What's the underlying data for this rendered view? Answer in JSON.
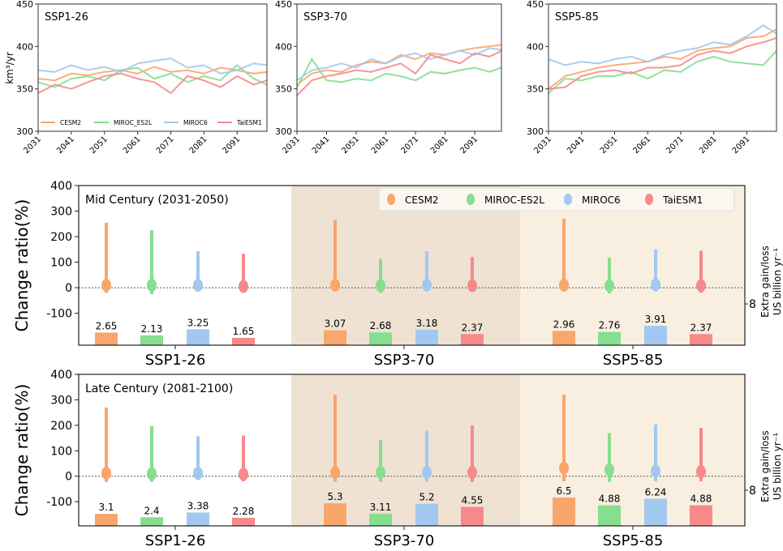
{
  "colors": {
    "CESM2": "#f9a66c",
    "MIROC_ES2L": "#86de8f",
    "MIROC6": "#a3c8ef",
    "TaiESM1": "#f7898b",
    "shade_ssp3": "#efe2d3",
    "shade_ssp5": "#f8efe1"
  },
  "chart_data": [
    {
      "type": "line",
      "ylabel": "km³/yr",
      "ylim": [
        300,
        450
      ],
      "yticks": [
        300,
        350,
        400,
        450
      ],
      "xlim": [
        2031,
        2100
      ],
      "xticks": [
        2031,
        2041,
        2051,
        2061,
        2071,
        2081,
        2091
      ],
      "x": [
        2031,
        2036,
        2041,
        2046,
        2051,
        2056,
        2061,
        2066,
        2071,
        2076,
        2081,
        2086,
        2091,
        2096,
        2100
      ],
      "legend": [
        "CESM2",
        "MIROC_ES2L",
        "MIROC6",
        "TaiESM1"
      ],
      "panels": [
        {
          "title": "SSP1-26",
          "series": [
            {
              "name": "CESM2",
              "values": [
                362,
                360,
                368,
                366,
                370,
                372,
                368,
                376,
                370,
                372,
                368,
                375,
                372,
                368,
                370
              ]
            },
            {
              "name": "MIROC_ES2L",
              "values": [
                358,
                352,
                362,
                365,
                360,
                372,
                375,
                362,
                368,
                358,
                365,
                360,
                378,
                362,
                355
              ]
            },
            {
              "name": "MIROC6",
              "values": [
                372,
                370,
                378,
                372,
                376,
                370,
                380,
                383,
                386,
                375,
                378,
                368,
                372,
                380,
                378
              ]
            },
            {
              "name": "TaiESM1",
              "values": [
                345,
                355,
                350,
                358,
                365,
                368,
                362,
                358,
                345,
                365,
                360,
                352,
                365,
                355,
                360
              ]
            }
          ]
        },
        {
          "title": "SSP3-70",
          "series": [
            {
              "name": "CESM2",
              "values": [
                355,
                368,
                372,
                370,
                378,
                382,
                380,
                390,
                385,
                392,
                390,
                395,
                398,
                400,
                402
              ]
            },
            {
              "name": "MIROC_ES2L",
              "values": [
                352,
                385,
                360,
                358,
                362,
                360,
                368,
                365,
                360,
                370,
                368,
                372,
                375,
                370,
                375
              ]
            },
            {
              "name": "MIROC6",
              "values": [
                360,
                372,
                375,
                380,
                375,
                385,
                380,
                388,
                392,
                385,
                390,
                395,
                390,
                398,
                396
              ]
            },
            {
              "name": "TaiESM1",
              "values": [
                342,
                360,
                365,
                368,
                372,
                370,
                375,
                380,
                368,
                390,
                385,
                380,
                392,
                388,
                395
              ]
            }
          ]
        },
        {
          "title": "SSP5-85",
          "series": [
            {
              "name": "CESM2",
              "values": [
                350,
                365,
                370,
                375,
                378,
                380,
                382,
                388,
                385,
                395,
                398,
                400,
                410,
                412,
                420
              ]
            },
            {
              "name": "MIROC_ES2L",
              "values": [
                345,
                362,
                360,
                365,
                365,
                370,
                362,
                372,
                370,
                382,
                388,
                382,
                380,
                378,
                395
              ]
            },
            {
              "name": "MIROC6",
              "values": [
                385,
                378,
                382,
                380,
                385,
                388,
                382,
                390,
                395,
                398,
                405,
                402,
                412,
                425,
                415
              ]
            },
            {
              "name": "TaiESM1",
              "values": [
                350,
                352,
                365,
                370,
                372,
                368,
                375,
                375,
                378,
                390,
                395,
                392,
                400,
                405,
                410
              ]
            }
          ]
        }
      ]
    },
    {
      "type": "bar",
      "title": "Mid Century (2031-2050)",
      "ylabel": "Change ratio(%)",
      "ylabel_right": [
        "Extra gain/loss",
        "US billion yr⁻¹"
      ],
      "ylim": [
        -225,
        400
      ],
      "yticks": [
        -100,
        0,
        100,
        200,
        300,
        400
      ],
      "bar_ylim": [
        0.29,
        30.1
      ],
      "right_ticks": [
        8
      ],
      "categories": [
        "SSP1-26",
        "SSP3-70",
        "SSP5-85"
      ],
      "legend": [
        "CESM2",
        "MIROC-ES2L",
        "MIROC6",
        "TaiESM1"
      ],
      "series": [
        {
          "name": "CESM2",
          "ranges": [
            [
              -20,
              255
            ],
            [
              -15,
              265
            ],
            [
              -15,
              270
            ]
          ],
          "medians": [
            10,
            10,
            10
          ],
          "bars": [
            2.65,
            3.07,
            2.96
          ]
        },
        {
          "name": "MIROC-ES2L",
          "ranges": [
            [
              -25,
              225
            ],
            [
              -20,
              113
            ],
            [
              -22,
              118
            ]
          ],
          "medians": [
            10,
            8,
            8
          ],
          "bars": [
            2.13,
            2.68,
            2.76
          ]
        },
        {
          "name": "MIROC6",
          "ranges": [
            [
              -15,
              143
            ],
            [
              -15,
              143
            ],
            [
              -15,
              150
            ]
          ],
          "medians": [
            10,
            10,
            12
          ],
          "bars": [
            3.25,
            3.18,
            3.91
          ]
        },
        {
          "name": "TaiESM1",
          "ranges": [
            [
              -20,
              133
            ],
            [
              -15,
              120
            ],
            [
              -20,
              145
            ]
          ],
          "medians": [
            5,
            8,
            8
          ],
          "bars": [
            1.65,
            2.37,
            2.37
          ]
        }
      ]
    },
    {
      "type": "bar",
      "title": "Late Century (2081-2100)",
      "ylabel": "Change ratio(%)",
      "ylabel_right": [
        "Extra gain/loss",
        "US billion yr⁻¹"
      ],
      "ylim": [
        -195,
        400
      ],
      "yticks": [
        -100,
        0,
        100,
        200,
        300,
        400
      ],
      "bar_ylim": [
        0.6,
        32.1
      ],
      "right_ticks": [
        8
      ],
      "categories": [
        "SSP1-26",
        "SSP3-70",
        "SSP5-85"
      ],
      "series": [
        {
          "name": "CESM2",
          "ranges": [
            [
              -22,
              270
            ],
            [
              -22,
              320
            ],
            [
              -20,
              320
            ]
          ],
          "medians": [
            12,
            15,
            32
          ],
          "bars": [
            3.1,
            5.3,
            6.5
          ]
        },
        {
          "name": "MIROC-ES2L",
          "ranges": [
            [
              -22,
              197
            ],
            [
              -22,
              143
            ],
            [
              -22,
              170
            ]
          ],
          "medians": [
            10,
            15,
            25
          ],
          "bars": [
            2.4,
            3.11,
            4.88
          ]
        },
        {
          "name": "MIROC6",
          "ranges": [
            [
              -15,
              157
            ],
            [
              -22,
              178
            ],
            [
              -20,
              203
            ]
          ],
          "medians": [
            12,
            15,
            20
          ],
          "bars": [
            3.38,
            5.2,
            6.24
          ]
        },
        {
          "name": "TaiESM1",
          "ranges": [
            [
              -20,
              160
            ],
            [
              -22,
              200
            ],
            [
              -20,
              190
            ]
          ],
          "medians": [
            8,
            15,
            18
          ],
          "bars": [
            2.28,
            4.55,
            4.88
          ]
        }
      ]
    }
  ]
}
